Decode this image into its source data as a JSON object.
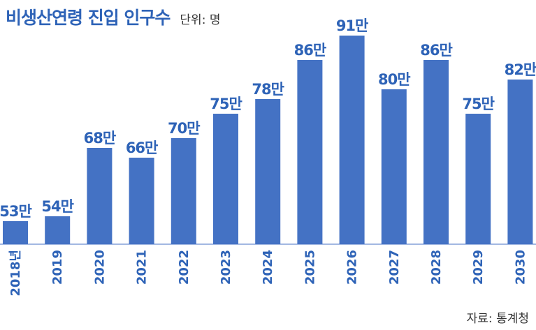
{
  "header": {
    "title": "비생산연령 진입 인구수",
    "unit": "단위: 명"
  },
  "footer": {
    "source": "자료: 통계청"
  },
  "colors": {
    "bar": "#4472c4",
    "label": "#2e63b7",
    "axis": "#4472c4"
  },
  "chart_data": {
    "type": "bar",
    "title": "비생산연령 진입 인구수",
    "categories": [
      "2018년",
      "2019",
      "2020",
      "2021",
      "2022",
      "2023",
      "2024",
      "2025",
      "2026",
      "2027",
      "2028",
      "2029",
      "2030"
    ],
    "values": [
      53,
      54,
      68,
      66,
      70,
      75,
      78,
      86,
      91,
      80,
      86,
      75,
      82
    ],
    "value_labels": [
      "53만",
      "54만",
      "68만",
      "66만",
      "70만",
      "75만",
      "78만",
      "86만",
      "91만",
      "80만",
      "86만",
      "75만",
      "82만"
    ],
    "value_unit": "만 명",
    "grid": false,
    "legend": "none"
  }
}
